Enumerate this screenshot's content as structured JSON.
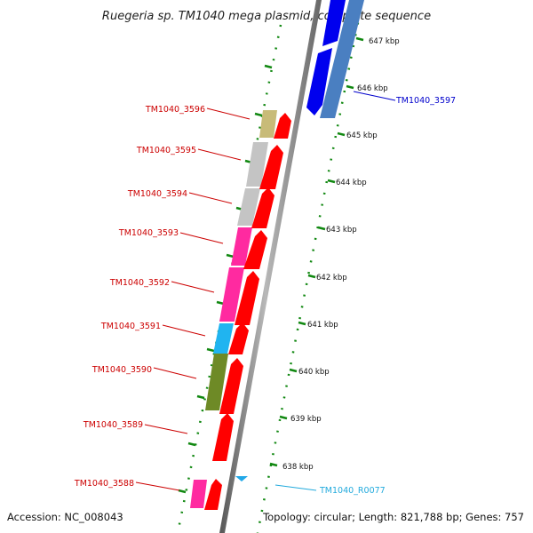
{
  "title": "Ruegeria sp. TM1040 mega plasmid, complete sequence",
  "footer": {
    "accession": "Accession: NC_008043",
    "summary": "Topology: circular; Length: 821,788 bp; Genes: 757"
  },
  "scale": {
    "ticks": [
      "647 kbp",
      "646 kbp",
      "645 kbp",
      "644 kbp",
      "643 kbp",
      "642 kbp",
      "641 kbp",
      "640 kbp",
      "639 kbp",
      "638 kbp"
    ]
  },
  "colors": {
    "red": "#ff0000",
    "blue": "#0000ee",
    "steel_blue": "#4a7fc1",
    "khaki": "#c8bb78",
    "gray": "#c4c4c4",
    "pink": "#ff2aa0",
    "cyan": "#20b4f0",
    "olive": "#6e8a26",
    "rna": "#22a8e8"
  },
  "genes": [
    {
      "label": "TM1040_3597",
      "label_color": "#0000cc"
    },
    {
      "label": "TM1040_3596",
      "label_color": "#cc0000"
    },
    {
      "label": "TM1040_3595",
      "label_color": "#cc0000"
    },
    {
      "label": "TM1040_3594",
      "label_color": "#cc0000"
    },
    {
      "label": "TM1040_3593",
      "label_color": "#cc0000"
    },
    {
      "label": "TM1040_3592",
      "label_color": "#cc0000"
    },
    {
      "label": "TM1040_3591",
      "label_color": "#cc0000"
    },
    {
      "label": "TM1040_3590",
      "label_color": "#cc0000"
    },
    {
      "label": "TM1040_3589",
      "label_color": "#cc0000"
    },
    {
      "label": "TM1040_3588",
      "label_color": "#cc0000"
    },
    {
      "label": "TM1040_R0077",
      "label_color": "#22aadd"
    }
  ]
}
